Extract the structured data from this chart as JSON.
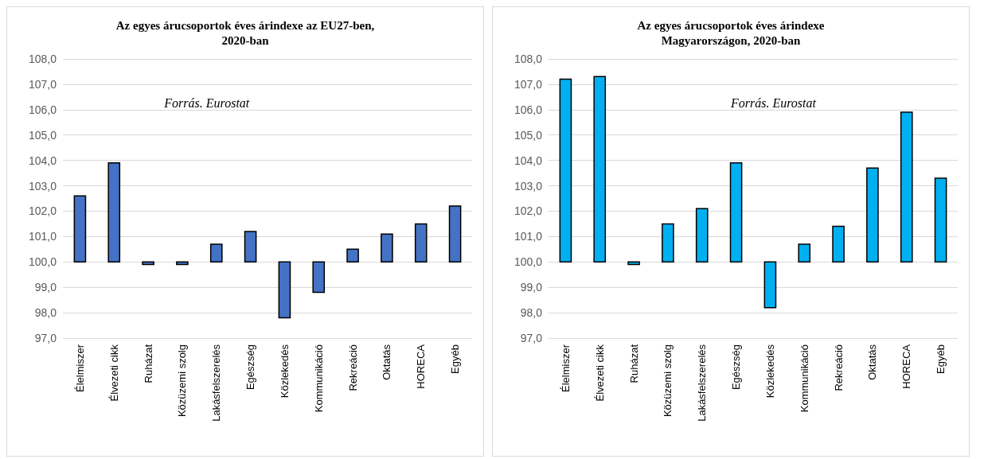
{
  "chart_data": [
    {
      "type": "bar",
      "title": "Az egyes árucsoportok éves árindexe az EU27-ben,\n2020-ban",
      "categories": [
        "Élelmiszer",
        "Élvezeti cikk",
        "Ruházat",
        "Közüzemi szolg",
        "Lakásfelszerelés",
        "Egészség",
        "Közlekedés",
        "Kommunikáció",
        "Rekreáció",
        "Oktatás",
        "HORECA",
        "Egyéb"
      ],
      "base": [
        100,
        100,
        100,
        100,
        100,
        100,
        100,
        100,
        100,
        100,
        100,
        100
      ],
      "values": [
        2.6,
        3.9,
        -0.1,
        -0.1,
        0.7,
        1.2,
        -2.2,
        -1.2,
        0.5,
        1.1,
        1.5,
        2.2
      ],
      "color": "#4472c4",
      "ylim": [
        97,
        108
      ],
      "yticks": [
        {
          "value": 97,
          "label": "97,0"
        },
        {
          "value": 98,
          "label": "98,0"
        },
        {
          "value": 99,
          "label": "99,0"
        },
        {
          "value": 100,
          "label": "100,0"
        },
        {
          "value": 101,
          "label": "101,0"
        },
        {
          "value": 102,
          "label": "102,0"
        },
        {
          "value": 103,
          "label": "103,0"
        },
        {
          "value": 104,
          "label": "104,0"
        },
        {
          "value": 105,
          "label": "105,0"
        },
        {
          "value": 106,
          "label": "106,0"
        },
        {
          "value": 107,
          "label": "107,0"
        },
        {
          "value": 108,
          "label": "108,0"
        }
      ],
      "grid": "y",
      "annotations": [
        "Forrás. Eurostat"
      ]
    },
    {
      "type": "bar",
      "title": "Az egyes árucsoportok éves árindexe\nMagyarországon, 2020-ban",
      "categories": [
        "Élelmiszer",
        "Élvezeti cikk",
        "Ruházat",
        "Közüzemi szolg",
        "Lakásfelszerelés",
        "Egészség",
        "Közlekedés",
        "Kommunikáció",
        "Rekreáció",
        "Oktatás",
        "HORECA",
        "Egyéb"
      ],
      "base": [
        100,
        100,
        100,
        100,
        100,
        100,
        100,
        100,
        100,
        100,
        100,
        100
      ],
      "values": [
        7.2,
        7.3,
        -0.1,
        1.5,
        2.1,
        3.9,
        -1.8,
        0.7,
        1.4,
        3.7,
        5.9,
        3.3
      ],
      "color": "#00b0f0",
      "ylim": [
        97,
        108
      ],
      "yticks": [
        {
          "value": 97,
          "label": "97,0"
        },
        {
          "value": 98,
          "label": "98,0"
        },
        {
          "value": 99,
          "label": "99,0"
        },
        {
          "value": 100,
          "label": "100,0"
        },
        {
          "value": 101,
          "label": "101,0"
        },
        {
          "value": 102,
          "label": "102,0"
        },
        {
          "value": 103,
          "label": "103,0"
        },
        {
          "value": 104,
          "label": "104,0"
        },
        {
          "value": 105,
          "label": "105,0"
        },
        {
          "value": 106,
          "label": "106,0"
        },
        {
          "value": 107,
          "label": "107,0"
        },
        {
          "value": 108,
          "label": "108,0"
        }
      ],
      "grid": "y",
      "annotations": [
        "Forrás. Eurostat"
      ]
    }
  ]
}
